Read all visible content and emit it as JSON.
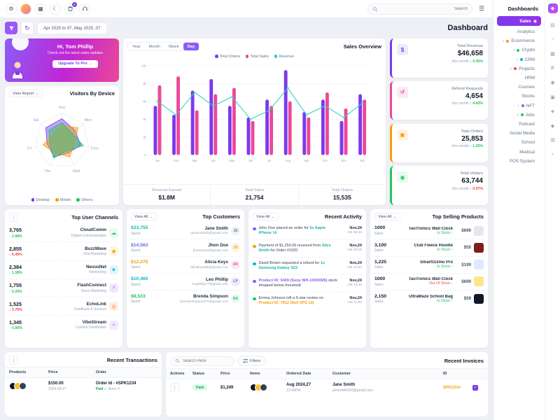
{
  "topbar": {
    "search_placeholder": "Search",
    "cart_badge": "5"
  },
  "sidebar": {
    "title": "Dashboards",
    "items": [
      {
        "label": "Sales",
        "cls": "active",
        "icon": "◉"
      },
      {
        "label": "Analytics"
      },
      {
        "label": "Ecommerce",
        "chevron": "›",
        "dot": "#f59e0b"
      },
      {
        "label": "Crypto",
        "chevron": "›",
        "dot": "#22c55e"
      },
      {
        "label": "CRM",
        "chevron": "›",
        "dot": "#06b6d4"
      },
      {
        "label": "Projects",
        "chevron": "›",
        "dot": "#f43f5e"
      },
      {
        "label": "HRM"
      },
      {
        "label": "Courses"
      },
      {
        "label": "Stocks"
      },
      {
        "label": "NFT",
        "chevron": "›",
        "dot": "#8b5cf6"
      },
      {
        "label": "Jobs",
        "chevron": "›",
        "dot": "#22c55e"
      },
      {
        "label": "Podcast"
      },
      {
        "label": "Social Media"
      },
      {
        "label": "School"
      },
      {
        "label": "Medical"
      },
      {
        "label": "POS System"
      }
    ],
    "rail_icons": [
      {
        "name": "sales-icon",
        "glyph": "▤"
      },
      {
        "name": "analytics-icon",
        "glyph": "◔"
      },
      {
        "name": "ecommerce-icon",
        "glyph": "▦"
      },
      {
        "name": "crypto-icon",
        "glyph": "Ƀ"
      },
      {
        "name": "crm-icon",
        "glyph": "◉"
      },
      {
        "name": "projects-icon",
        "glyph": "▣"
      },
      {
        "name": "hrm-icon",
        "glyph": "◈"
      },
      {
        "name": "courses-icon",
        "glyph": "◆"
      },
      {
        "name": "stocks-icon",
        "glyph": "▥"
      },
      {
        "name": "nft-icon",
        "glyph": "♪"
      }
    ]
  },
  "page": {
    "title": "Dashboard",
    "date_range": "Apr 2025 to 07, May 2025 ,07"
  },
  "promo": {
    "greeting": "Hi, Tom Phillip",
    "subtitle": "Check out the latest sales updates",
    "cta": "Upgrade To Pro →"
  },
  "visitors": {
    "title": "Visitors By Device",
    "link": "View Report →",
    "legend": [
      {
        "label": "Desktop",
        "color": "#7c3aed"
      },
      {
        "label": "Mobile",
        "color": "#f59e0b"
      },
      {
        "label": "Others",
        "color": "#22c55e"
      }
    ]
  },
  "sales_overview": {
    "title": "Sales Overview",
    "tabs": [
      "Year",
      "Month",
      "Week",
      "Day"
    ],
    "legend": [
      {
        "label": "Total Orders",
        "color": "#7c3aed"
      },
      {
        "label": "Total Sales",
        "color": "#ec4899"
      },
      {
        "label": "Revenue",
        "color": "#2dd4bf"
      }
    ],
    "stats": [
      {
        "label": "Revenue Earned",
        "value": "$1.8M"
      },
      {
        "label": "Total Sales",
        "value": "21,754"
      },
      {
        "label": "Total Orders",
        "value": "15,535"
      }
    ]
  },
  "stat_cards": [
    {
      "label": "Total Revenue",
      "value": "$46,658",
      "sub": "this month",
      "change": "0.45%",
      "trend": "up",
      "color": "#7c3aed",
      "tint": "#efe9fd",
      "icon": "$"
    },
    {
      "label": "Refund Requests",
      "value": "4,654",
      "sub": "this month",
      "change": "4.43%",
      "trend": "up",
      "color": "#ec4899",
      "tint": "#fde8f3",
      "icon": "↺"
    },
    {
      "label": "Total Orders",
      "value": "25,853",
      "sub": "this month",
      "change": "1.25%",
      "trend": "up",
      "color": "#f59e0b",
      "tint": "#fef3e2",
      "icon": "▣"
    },
    {
      "label": "Total Visitors",
      "value": "63,744",
      "sub": "this month",
      "change": "0.97%",
      "trend": "down",
      "color": "#22c55e",
      "tint": "#e8f9ef",
      "icon": "◉"
    }
  ],
  "top_channels": {
    "title": "Top User Channels",
    "rows": [
      {
        "value": "3,765",
        "change": "2.98%",
        "trend": "up",
        "name": "CloudComm",
        "desc": "Digital Communication",
        "color": "#22c55e",
        "tint": "#e8f9ef",
        "icon": "☁"
      },
      {
        "value": "2,855",
        "change": "6.45%",
        "trend": "down",
        "name": "BuzzWave",
        "desc": "Viral Marketing",
        "color": "#f59e0b",
        "tint": "#fef3e2",
        "icon": "◉"
      },
      {
        "value": "2,384",
        "change": "1.58%",
        "trend": "up",
        "name": "NexusNet",
        "desc": "Networking",
        "color": "#06b6d4",
        "tint": "#e0f7fb",
        "icon": "◈"
      },
      {
        "value": "1,755",
        "change": "5.29%",
        "trend": "up",
        "name": "FlashConnect",
        "desc": "Direct Marketing",
        "color": "#8b5cf6",
        "tint": "#efe9fd",
        "icon": "⚡"
      },
      {
        "value": "1,525",
        "change": "3.75%",
        "trend": "down",
        "name": "EchoLink",
        "desc": "Feedback & Surveys",
        "color": "#f97316",
        "tint": "#feeee2",
        "icon": "◎"
      },
      {
        "value": "1,345",
        "change": "0.95%",
        "trend": "up",
        "name": "VibeStream",
        "desc": "Content Distribution",
        "color": "#a855f7",
        "tint": "#f4e9fe",
        "icon": "≈"
      }
    ]
  },
  "top_customers": {
    "title": "Top Customers",
    "link": "View All →",
    "rows": [
      {
        "amount": "$23,755",
        "amount_color": "#14b8a6",
        "label": "Spent",
        "name": "Jane Smith",
        "email": "janesmith25@gmail.com",
        "initials": "JS",
        "color": "#64748b",
        "tint": "#eef1f6"
      },
      {
        "amount": "$14,563",
        "amount_color": "#6366f1",
        "label": "Spent",
        "name": "Jhon Doe",
        "email": "jhondoe43@gmail.com",
        "initials": "JD",
        "color": "#f59e0b",
        "tint": "#fef3e2"
      },
      {
        "amount": "$12,075",
        "amount_color": "#f59e0b",
        "label": "Spent",
        "name": "Alicia Keys",
        "email": "aliciakeys98@gmail.com",
        "initials": "AK",
        "color": "#ec4899",
        "tint": "#fde8f3"
      },
      {
        "amount": "$10,465",
        "amount_color": "#06b6d4",
        "label": "Spent",
        "name": "Leo Phillip",
        "email": "leophillip77@gmail.com",
        "initials": "LP",
        "color": "#8b5cf6",
        "tint": "#efe9fd"
      },
      {
        "amount": "$8,533",
        "amount_color": "#22c55e",
        "label": "Spent",
        "name": "Brenda Simpson",
        "email": "brendasimpson075@gmail.com",
        "initials": "BS",
        "color": "#22c55e",
        "tint": "#e8f9ef"
      }
    ]
  },
  "recent_activity": {
    "title": "Recent Activity",
    "link": "View All →",
    "rows": [
      {
        "pre": "John Doe placed an order for ",
        "hl": "5x Apple iPhone 14",
        "hl_color": "#14b8a6",
        "post": "",
        "date": "Nov,24",
        "time": "AM 08:45",
        "dot": "#8b5cf6"
      },
      {
        "pre": "Payment of $1,250.00 received from ",
        "hl": "Alice Smith",
        "hl_color": "#14b8a6",
        "post": " for Order #1020",
        "date": "Nov,24",
        "time": "AM 09:15",
        "dot": "#f59e0b"
      },
      {
        "pre": "David Brown requested a refund for ",
        "hl": "1x Samsung Galaxy S22",
        "hl_color": "#14b8a6",
        "post": "",
        "date": "Nov,24",
        "time": "AM 10:30",
        "dot": "#06b6d4"
      },
      {
        "pre": "",
        "hl": "Product ID: 5409 (Sony WH-1000XM5)",
        "hl_color": "#8b5cf6",
        "post": " stock dropped below threshold",
        "date": "Nov,24",
        "time": "AM 10:45",
        "dot": "#8b5cf6"
      },
      {
        "pre": "Emma Johnson left a 5-star review on ",
        "hl": "Product ID: 7812 (Dell XPS 13)",
        "hl_color": "#f59e0b",
        "post": "",
        "date": "Nov,24",
        "time": "AM 11:30",
        "dot": "#22c55e"
      }
    ]
  },
  "top_products": {
    "title": "Top Selling Products",
    "link": "View All →",
    "rows": [
      {
        "sales": "1000",
        "sales_label": "Sales",
        "name": "TaoTronics Wall Clock",
        "status": "In Stock",
        "trend": "up",
        "price": "$699",
        "thumb": "#e5e7eb"
      },
      {
        "sales": "3,100",
        "sales_label": "Sales",
        "name": "Club Fleece Hoodie",
        "status": "In Stock",
        "trend": "up",
        "price": "$55",
        "thumb": "#7f1d1d"
      },
      {
        "sales": "1,225",
        "sales_label": "Sales",
        "name": "SmartGizmo Pro",
        "status": "In Stock",
        "trend": "up",
        "price": "$199",
        "thumb": "#dbeafe"
      },
      {
        "sales": "1000",
        "sales_label": "Sales",
        "name": "TaoTronics Wall Clock",
        "status": "Out Of Stock",
        "trend": "down",
        "price": "$699",
        "thumb": "#fde68a"
      },
      {
        "sales": "2,150",
        "sales_label": "Sales",
        "name": "UltraMaze School Bag",
        "status": "In Stock",
        "trend": "up",
        "price": "$59",
        "thumb": "#111827"
      }
    ]
  },
  "recent_transactions": {
    "title": "Recent Transactions",
    "headers": [
      "Products",
      "Price",
      "Order"
    ],
    "rows": [
      {
        "price": "$150.00",
        "date": "2024-08-27",
        "order_id": "Order Id - #SPK1234",
        "status": "Paid ✓",
        "items": "Items 4"
      }
    ]
  },
  "recent_invoices": {
    "title": "Recent Invoices",
    "search_placeholder": "Search Here",
    "filters_label": "Filters",
    "headers": [
      "Actions",
      "Status",
      "Price",
      "Items",
      "Ordered Date",
      "Customer",
      "ID",
      ""
    ],
    "rows": [
      {
        "status": "Paid",
        "price": "$1,249",
        "date": "Aug 2024,27",
        "time": "12:45PM",
        "name": "Jane Smith",
        "email": "janesmith243@gmail.com",
        "id": "SPK231#"
      }
    ]
  },
  "chart_data": [
    {
      "name": "sales_overview",
      "type": "bar",
      "title": "Sales Overview",
      "categories": [
        "Jan",
        "Feb",
        "Mar",
        "Apr",
        "May",
        "Jun",
        "Jul",
        "Aug",
        "Sep",
        "Oct",
        "Nov",
        "Dec"
      ],
      "series": [
        {
          "name": "Total Orders",
          "color": "#7c3aed",
          "values": [
            55,
            45,
            72,
            85,
            55,
            42,
            62,
            95,
            48,
            62,
            38,
            68
          ]
        },
        {
          "name": "Total Sales",
          "color": "#ec4899",
          "values": [
            78,
            88,
            50,
            68,
            75,
            38,
            55,
            60,
            42,
            70,
            52,
            62
          ]
        },
        {
          "name": "Revenue",
          "color": "#2dd4bf",
          "line": true,
          "values": [
            60,
            45,
            70,
            55,
            65,
            40,
            50,
            75,
            45,
            55,
            42,
            58
          ]
        }
      ],
      "ylim": [
        0,
        100
      ],
      "yticks": [
        "0",
        "2k",
        "4k",
        "6k",
        "8k",
        "10k"
      ],
      "grid": true,
      "legend_position": "top"
    },
    {
      "name": "visitors_by_device",
      "type": "radar",
      "title": "Visitors By Device",
      "categories": [
        "Sun",
        "Mon",
        "Tues",
        "Wed",
        "Thu",
        "Fri",
        "Sat"
      ],
      "series": [
        {
          "name": "Desktop",
          "color": "#7c3aed",
          "values": [
            80,
            60,
            70,
            50,
            65,
            55,
            75
          ]
        },
        {
          "name": "Mobile",
          "color": "#f59e0b",
          "values": [
            55,
            75,
            45,
            65,
            50,
            70,
            40
          ]
        },
        {
          "name": "Others",
          "color": "#22c55e",
          "values": [
            65,
            45,
            80,
            40,
            70,
            45,
            60
          ]
        }
      ],
      "legend_position": "bottom"
    }
  ]
}
